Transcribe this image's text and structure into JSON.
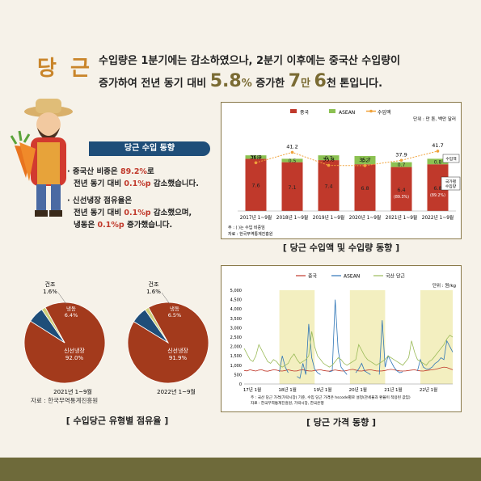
{
  "headline": {
    "title": "당 근",
    "line1": "수입량은 1분기에는 감소하였으나, 2분기 이후에는 중국산 수입량이",
    "line2_a": "증가하여 전년 동기 대비",
    "line2_b": "5.8",
    "line2_c": "%",
    "line2_d": "증가한",
    "line2_e": "7",
    "line2_f": "만",
    "line2_g": "6",
    "line2_h": "천 톤입니다."
  },
  "import_trend": {
    "banner": "당근 수입 동향",
    "b1_a": "· 중국산 비중은",
    "b1_b": "89.2%",
    "b1_c": "로",
    "b1_d": "전년 동기 대비",
    "b1_e": "0.1%p",
    "b1_f": "감소했습니다.",
    "b2_a": "· 신선냉장 점유율은",
    "b2_b": "전년 동기 대비",
    "b2_c": "0.1%p",
    "b2_d": "감소했으며,",
    "b2_e": "냉동은",
    "b2_f": "0.1%p",
    "b2_g": "증가했습니다."
  },
  "colors": {
    "china": "#c0392b",
    "asean": "#8cc152",
    "amount": "#f0a23a",
    "fresh": "#a33a1c",
    "frozen": "#1f4e79",
    "dried": "#cfcf7a",
    "band": "#f3efc0"
  },
  "chart_data": [
    {
      "type": "bar",
      "title": "",
      "caption": "[ 당근 수입액 및 수입량 동향 ]",
      "unit": "단위 : 만 톤, 백만 달러",
      "legend": [
        "중국",
        "ASEAN",
        "수입액"
      ],
      "categories": [
        "2017년 1~9월",
        "2018년 1~9월",
        "2019년 1~9월",
        "2020년 1~9월",
        "2021년 1~9월",
        "2022년 1~9월"
      ],
      "series": [
        {
          "name": "중국",
          "values": [
            7.6,
            7.1,
            7.4,
            6.8,
            6.4,
            6.8
          ],
          "labels": [
            "7.6",
            "7.1",
            "7.4",
            "6.8",
            "6.4",
            "6.8"
          ]
        },
        {
          "name": "ASEAN",
          "values": [
            0.5,
            0.5,
            0.7,
            1.2,
            0.7,
            0.8
          ],
          "labels": [
            "0.5",
            "0.5",
            "0.7",
            "1.2",
            "0.7",
            "0.8"
          ]
        },
        {
          "name": "수입액",
          "values": [
            36.9,
            41.2,
            35.8,
            35.7,
            37.9,
            41.7
          ],
          "labels": [
            "36.9",
            "41.2",
            "35.8",
            "35.7",
            "37.9",
            "41.7"
          ]
        }
      ],
      "share_labels": [
        "",
        "",
        "",
        "",
        "(89.3%)",
        "(89.2%)"
      ],
      "side_labels": [
        "수입액",
        "국가별\n수입량"
      ],
      "notes": [
        "주 : ( )는 수입 비중임",
        "자료 : 한국무역통계진흥원"
      ]
    },
    {
      "type": "pie",
      "title": "2021년 1~9월",
      "labels": [
        "신선냉장",
        "냉동",
        "건조"
      ],
      "values": [
        92.0,
        6.4,
        1.6
      ],
      "value_labels": [
        "92.0%",
        "6.4%",
        "1.6%"
      ]
    },
    {
      "type": "pie",
      "title": "2022년 1~9월",
      "labels": [
        "신선냉장",
        "냉동",
        "건조"
      ],
      "values": [
        91.9,
        6.5,
        1.6
      ],
      "value_labels": [
        "91.9%",
        "6.5%",
        "1.6%"
      ],
      "caption": "[ 수입당근 유형별 점유율 ]",
      "source": "자료 : 한국무역통계진흥원"
    },
    {
      "type": "line",
      "caption": "[ 당근 가격 동향 ]",
      "unit": "단위 : 원/kg",
      "legend": [
        "중국",
        "ASEAN",
        "국산 당근"
      ],
      "yticks": [
        "5,000",
        "4,500",
        "4,000",
        "3,500",
        "3,000",
        "2,500",
        "2,000",
        "1,500",
        "1,000",
        "500",
        "0"
      ],
      "ylim": [
        0,
        5000
      ],
      "xticks": [
        "17년 1월",
        "18년 1월",
        "19년 1월",
        "20년 1월",
        "21년 1월",
        "22년 1월"
      ],
      "series": [
        {
          "name": "중국",
          "values": [
            720,
            700,
            760,
            720,
            690,
            740,
            760,
            700,
            680,
            720,
            760,
            740,
            700,
            690,
            720,
            760,
            720,
            690,
            700,
            740,
            760,
            720,
            700,
            690,
            720,
            740,
            760,
            720,
            700,
            680,
            720,
            750,
            720,
            700,
            690,
            720,
            760,
            780,
            740,
            700,
            690,
            720,
            740,
            760,
            730,
            700,
            690,
            700,
            720,
            760,
            780,
            760,
            720,
            700,
            690,
            700,
            720,
            740,
            760,
            720,
            700,
            690,
            720,
            740,
            760,
            780,
            820,
            860,
            900,
            880,
            820,
            760
          ]
        },
        {
          "name": "ASEAN",
          "values": [
            null,
            null,
            null,
            null,
            null,
            null,
            null,
            null,
            null,
            null,
            null,
            null,
            650,
            1500,
            900,
            600,
            null,
            null,
            400,
            300,
            1100,
            500,
            3200,
            1400,
            800,
            600,
            500,
            null,
            null,
            650,
            700,
            4500,
            1800,
            900,
            700,
            500,
            null,
            null,
            600,
            800,
            1100,
            700,
            600,
            500,
            null,
            null,
            500,
            3400,
            900,
            1500,
            1200,
            900,
            700,
            600,
            650,
            null,
            null,
            null,
            null,
            700,
            1300,
            900,
            800,
            800,
            900,
            1100,
            1200,
            1400,
            1300,
            2300,
            2000,
            1700
          ]
        },
        {
          "name": "국산 당근",
          "values": [
            1900,
            1600,
            1300,
            1200,
            1500,
            2100,
            1800,
            1500,
            1200,
            1100,
            1300,
            1200,
            1000,
            900,
            1000,
            1100,
            1400,
            1600,
            1300,
            1100,
            1200,
            1300,
            1500,
            2800,
            2000,
            1500,
            1300,
            1100,
            1000,
            900,
            1000,
            1200,
            1400,
            1300,
            1100,
            1000,
            1100,
            1200,
            1300,
            2100,
            1800,
            1500,
            1300,
            1200,
            1100,
            1000,
            1100,
            1200,
            1300,
            1500,
            1400,
            1300,
            1200,
            1100,
            1000,
            1200,
            1400,
            2300,
            1700,
            1300,
            1200,
            1100,
            1000,
            1200,
            1300,
            1500,
            1700,
            1900,
            2100,
            2400,
            2600,
            2500
          ]
        }
      ],
      "shaded_ranges": [
        [
          12,
          24
        ],
        [
          36,
          48
        ],
        [
          60,
          71
        ]
      ],
      "notes": [
        "주 : 국산 당근 가격(가락시장) 기준, 수입 당근 가격은 hscode별로 설정(관세율과 환율이 적용된 값임)",
        "자료 : 한국무역통계진흥원, 가락시장, 한국은행"
      ]
    }
  ]
}
